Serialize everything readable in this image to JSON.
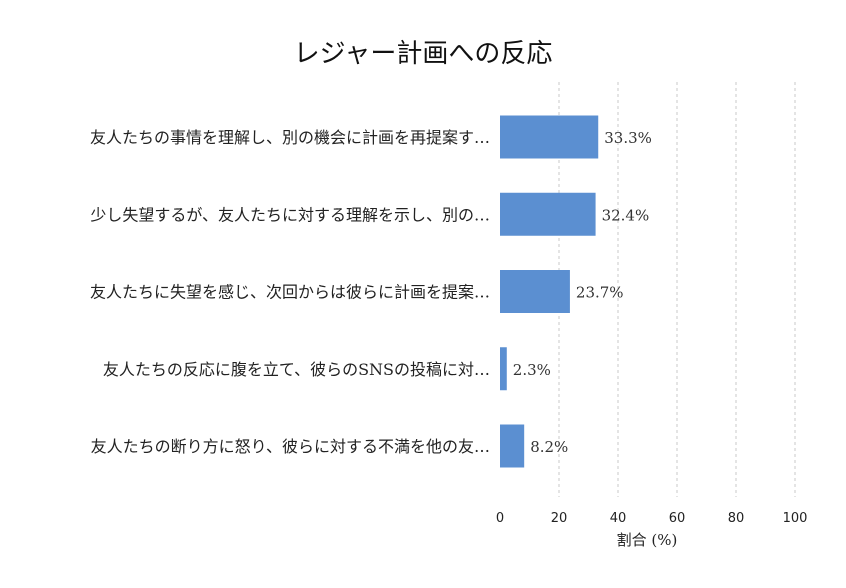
{
  "chart_data": {
    "type": "bar",
    "orientation": "horizontal",
    "title": "レジャー計画への反応",
    "xlabel": "割合 (%)",
    "ylabel": "",
    "xlim": [
      0,
      100
    ],
    "xticks": [
      0,
      20,
      40,
      60,
      80,
      100
    ],
    "grid": true,
    "categories": [
      "友人たちの事情を理解し、別の機会に計画を再提案す…",
      "少し失望するが、友人たちに対する理解を示し、別の…",
      "友人たちに失望を感じ、次回からは彼らに計画を提案…",
      "友人たちの反応に腹を立て、彼らのSNSの投稿に対…",
      "友人たちの断り方に怒り、彼らに対する不満を他の友…"
    ],
    "values": [
      33.3,
      32.4,
      23.7,
      2.3,
      8.2
    ],
    "value_labels": [
      "33.3%",
      "32.4%",
      "23.7%",
      "2.3%",
      "8.2%"
    ],
    "bar_color": "#5b8fd1"
  }
}
